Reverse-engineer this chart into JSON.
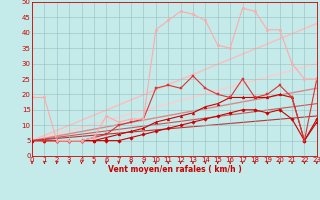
{
  "xlabel": "Vent moyen/en rafales ( km/h )",
  "xlim": [
    0,
    23
  ],
  "ylim": [
    0,
    50
  ],
  "xticks": [
    0,
    1,
    2,
    3,
    4,
    5,
    6,
    7,
    8,
    9,
    10,
    11,
    12,
    13,
    14,
    15,
    16,
    17,
    18,
    19,
    20,
    21,
    22,
    23
  ],
  "yticks": [
    0,
    5,
    10,
    15,
    20,
    25,
    30,
    35,
    40,
    45,
    50
  ],
  "bg_color": "#c5eaea",
  "grid_color": "#9bbdbd",
  "lines": [
    {
      "x": [
        0,
        1,
        2,
        3,
        4,
        5,
        6,
        7,
        8,
        9,
        10,
        11,
        12,
        13,
        14,
        15,
        16,
        17,
        18,
        19,
        20,
        21,
        22,
        23
      ],
      "y": [
        5,
        5,
        5,
        5,
        5,
        5,
        5,
        5,
        6,
        7,
        8,
        9,
        10,
        11,
        12,
        13,
        14,
        15,
        15,
        14,
        15,
        12,
        5,
        12
      ],
      "color": "#cc0000",
      "lw": 0.8,
      "marker": "D",
      "ms": 1.8
    },
    {
      "x": [
        0,
        1,
        2,
        3,
        4,
        5,
        6,
        7,
        8,
        9,
        10,
        11,
        12,
        13,
        14,
        15,
        16,
        17,
        18,
        19,
        20,
        21,
        22,
        23
      ],
      "y": [
        5,
        5,
        5,
        5,
        5,
        5,
        6,
        7,
        8,
        9,
        11,
        12,
        13,
        14,
        16,
        17,
        19,
        19,
        19,
        19,
        20,
        19,
        5,
        11
      ],
      "color": "#cc0000",
      "lw": 0.8,
      "marker": "^",
      "ms": 2.0
    },
    {
      "x": [
        0,
        1,
        2,
        3,
        4,
        5,
        6,
        7,
        8,
        9,
        10,
        11,
        12,
        13,
        14,
        15,
        16,
        17,
        18,
        19,
        20,
        21,
        22,
        23
      ],
      "y": [
        5,
        5,
        5,
        5,
        5,
        6,
        7,
        10,
        11,
        12,
        22,
        23,
        22,
        26,
        22,
        20,
        19,
        25,
        19,
        20,
        23,
        19,
        5,
        25
      ],
      "color": "#dd3333",
      "lw": 0.8,
      "marker": "s",
      "ms": 1.8
    },
    {
      "x": [
        0,
        1,
        2,
        3,
        4,
        5,
        6,
        7,
        8,
        9,
        10,
        11,
        12,
        13,
        14,
        15,
        16,
        17,
        18,
        19,
        20,
        21,
        22,
        23
      ],
      "y": [
        19,
        19,
        5,
        5,
        5,
        6,
        13,
        11,
        12,
        12,
        41,
        44,
        47,
        46,
        44,
        36,
        35,
        48,
        47,
        41,
        41,
        30,
        25,
        25
      ],
      "color": "#ffaaaa",
      "lw": 0.8,
      "marker": "o",
      "ms": 1.8
    },
    {
      "x": [
        0,
        23
      ],
      "y": [
        5,
        43
      ],
      "color": "#ffbbbb",
      "lw": 1.0,
      "marker": null,
      "ms": 0
    },
    {
      "x": [
        0,
        23
      ],
      "y": [
        5,
        30
      ],
      "color": "#ffcccc",
      "lw": 1.0,
      "marker": null,
      "ms": 0
    },
    {
      "x": [
        0,
        23
      ],
      "y": [
        5,
        22
      ],
      "color": "#dd8888",
      "lw": 1.0,
      "marker": null,
      "ms": 0
    },
    {
      "x": [
        0,
        23
      ],
      "y": [
        5,
        17
      ],
      "color": "#cc5555",
      "lw": 0.8,
      "marker": null,
      "ms": 0
    },
    {
      "x": [
        0,
        23
      ],
      "y": [
        5,
        13
      ],
      "color": "#bb3333",
      "lw": 0.8,
      "marker": null,
      "ms": 0
    }
  ],
  "arrow_color": "#cc0000",
  "tick_label_color": "#cc0000",
  "axis_label_color": "#cc0000",
  "font_size": 5.0
}
